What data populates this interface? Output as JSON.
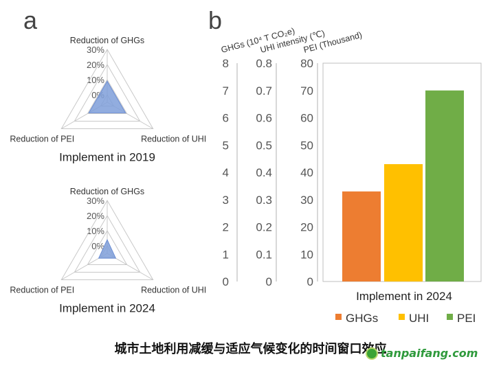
{
  "panel_labels": {
    "a": "a",
    "b": "b"
  },
  "caption": "城市土地利用减缓与适应气候变化的时间窗口效应",
  "watermark": "tanpaifang.com",
  "colors": {
    "radar_fill": "#7f9fd9",
    "radar_stroke": "#6a8cd2",
    "grid": "#c8c8c8",
    "axis_text": "#555555",
    "GHGs": "#ed7d31",
    "UHI": "#ffc000",
    "PEI": "#70ad47"
  },
  "chart_data": [
    {
      "type": "radar",
      "title": "Implement in 2019",
      "axes": [
        "Reduction of GHGs",
        "Reduction of UHI",
        "Reduction of PEI"
      ],
      "ticks": [
        "0%",
        "10%",
        "20%",
        "30%"
      ],
      "rlim": [
        -5,
        30
      ],
      "values": [
        9,
        9,
        9
      ]
    },
    {
      "type": "radar",
      "title": "Implement in 2024",
      "axes": [
        "Reduction of GHGs",
        "Reduction of UHI",
        "Reduction of PEI"
      ],
      "ticks": [
        "0%",
        "10%",
        "20%",
        "30%"
      ],
      "rlim": [
        -5,
        30
      ],
      "values": [
        4,
        1.5,
        1.5
      ]
    },
    {
      "type": "bar",
      "title": "Implement in 2024",
      "categories": [
        "GHGs",
        "UHI",
        "PEI"
      ],
      "legend": [
        "GHGs",
        "UHI",
        "PEI"
      ],
      "legend_position": "bottom",
      "display_values": [
        33,
        43,
        70
      ],
      "values": [
        3.3,
        0.43,
        70
      ],
      "axes": [
        {
          "label": "GHGs (10⁴ T CO₂e)",
          "ticks": [
            "0",
            "1",
            "2",
            "3",
            "4",
            "5",
            "6",
            "7",
            "8"
          ],
          "ylim": [
            0,
            8
          ]
        },
        {
          "label": "UHI intensity (℃)",
          "ticks": [
            "0",
            "0.1",
            "0.2",
            "0.3",
            "0.4",
            "0.5",
            "0.6",
            "0.7",
            "0.8"
          ],
          "ylim": [
            0,
            0.8
          ]
        },
        {
          "label": "PEI (Thousand)",
          "ticks": [
            "0",
            "10",
            "20",
            "30",
            "40",
            "50",
            "60",
            "70",
            "80"
          ],
          "ylim": [
            0,
            80
          ]
        }
      ]
    }
  ]
}
